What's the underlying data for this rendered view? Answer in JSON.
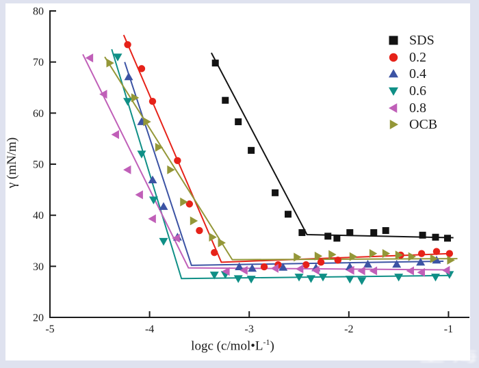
{
  "chart_data": {
    "type": "scatter",
    "title": "",
    "xlabel_main": "logc (c/mol•L",
    "xlabel_sup": "-1",
    "xlabel_close": ")",
    "ylabel": "γ (mN/m)",
    "axes": {
      "xlim": [
        -5,
        -0.79
      ],
      "ylim": [
        20,
        80
      ],
      "xticks": [
        -5,
        -4,
        -3,
        -2,
        -1
      ],
      "yticks": [
        20,
        30,
        40,
        50,
        60,
        70,
        80
      ],
      "grid": false,
      "legend_position": "upper-right"
    },
    "series": [
      {
        "name": "SDS",
        "marker": "square",
        "color": "#131313",
        "points": [
          [
            -3.34,
            69.8
          ],
          [
            -3.24,
            62.5
          ],
          [
            -3.11,
            58.3
          ],
          [
            -2.98,
            52.7
          ],
          [
            -2.74,
            44.4
          ],
          [
            -2.61,
            40.2
          ],
          [
            -2.47,
            36.6
          ],
          [
            -2.21,
            35.9
          ],
          [
            -2.12,
            35.5
          ],
          [
            -1.99,
            36.6
          ],
          [
            -1.75,
            36.6
          ],
          [
            -1.63,
            37.0
          ],
          [
            -1.26,
            36.1
          ],
          [
            -1.13,
            35.7
          ],
          [
            -1.01,
            35.5
          ]
        ],
        "line": [
          [
            -3.38,
            71.8
          ],
          [
            -2.42,
            36.2
          ],
          [
            -0.95,
            35.6
          ]
        ]
      },
      {
        "name": "0.2",
        "marker": "circle",
        "color": "#e62219",
        "points": [
          [
            -4.22,
            73.4
          ],
          [
            -4.08,
            68.7
          ],
          [
            -3.97,
            62.3
          ],
          [
            -3.72,
            50.7
          ],
          [
            -3.6,
            42.2
          ],
          [
            -3.5,
            37.0
          ],
          [
            -3.35,
            32.7
          ],
          [
            -2.85,
            29.9
          ],
          [
            -2.71,
            30.3
          ],
          [
            -2.43,
            30.3
          ],
          [
            -2.28,
            30.8
          ],
          [
            -2.11,
            31.2
          ],
          [
            -1.48,
            32.2
          ],
          [
            -1.27,
            32.5
          ],
          [
            -1.12,
            32.9
          ],
          [
            -0.99,
            32.5
          ]
        ],
        "line": [
          [
            -4.26,
            75.3
          ],
          [
            -3.28,
            30.8
          ],
          [
            -0.97,
            32.5
          ]
        ]
      },
      {
        "name": "0.4",
        "marker": "triangle-up",
        "color": "#3c53a4",
        "points": [
          [
            -4.21,
            67.1
          ],
          [
            -4.08,
            58.3
          ],
          [
            -3.97,
            46.9
          ],
          [
            -3.86,
            41.7
          ],
          [
            -3.72,
            35.7
          ],
          [
            -3.1,
            29.9
          ],
          [
            -2.97,
            29.6
          ],
          [
            -2.66,
            29.8
          ],
          [
            -2.33,
            29.7
          ],
          [
            -1.99,
            29.9
          ],
          [
            -1.81,
            30.4
          ],
          [
            -1.52,
            30.4
          ],
          [
            -1.28,
            30.8
          ],
          [
            -1.12,
            31.2
          ]
        ],
        "line": [
          [
            -4.25,
            70.0
          ],
          [
            -3.58,
            30.2
          ],
          [
            -1.05,
            31.0
          ]
        ]
      },
      {
        "name": "0.6",
        "marker": "triangle-down",
        "color": "#0f8f86",
        "points": [
          [
            -4.32,
            71.0
          ],
          [
            -4.22,
            62.3
          ],
          [
            -4.08,
            52.0
          ],
          [
            -3.96,
            43.0
          ],
          [
            -3.86,
            34.9
          ],
          [
            -3.35,
            28.3
          ],
          [
            -3.24,
            28.4
          ],
          [
            -3.11,
            27.6
          ],
          [
            -2.98,
            27.5
          ],
          [
            -2.5,
            27.9
          ],
          [
            -2.38,
            27.6
          ],
          [
            -2.26,
            27.9
          ],
          [
            -1.99,
            27.5
          ],
          [
            -1.87,
            27.2
          ],
          [
            -1.5,
            27.9
          ],
          [
            -1.13,
            27.9
          ],
          [
            -0.99,
            28.4
          ]
        ],
        "line": [
          [
            -4.38,
            72.5
          ],
          [
            -3.68,
            27.6
          ],
          [
            -0.97,
            28.2
          ]
        ]
      },
      {
        "name": "0.8",
        "marker": "triangle-left",
        "color": "#c05fb8",
        "points": [
          [
            -4.6,
            70.8
          ],
          [
            -4.46,
            63.7
          ],
          [
            -4.34,
            55.8
          ],
          [
            -4.22,
            48.9
          ],
          [
            -4.1,
            44.0
          ],
          [
            -3.97,
            39.3
          ],
          [
            -3.73,
            35.5
          ],
          [
            -3.23,
            29.0
          ],
          [
            -3.05,
            29.2
          ],
          [
            -2.74,
            29.6
          ],
          [
            -2.49,
            29.5
          ],
          [
            -2.33,
            29.2
          ],
          [
            -1.98,
            29.2
          ],
          [
            -1.87,
            29.1
          ],
          [
            -1.75,
            29.1
          ],
          [
            -1.38,
            29.1
          ],
          [
            -1.27,
            28.8
          ],
          [
            -1.02,
            29.2
          ]
        ],
        "line": [
          [
            -4.67,
            71.5
          ],
          [
            -3.61,
            29.7
          ],
          [
            -0.99,
            29.3
          ]
        ]
      },
      {
        "name": "OCB",
        "marker": "triangle-right",
        "color": "#949738",
        "points": [
          [
            -4.4,
            69.8
          ],
          [
            -4.15,
            63.0
          ],
          [
            -4.03,
            58.3
          ],
          [
            -3.91,
            53.3
          ],
          [
            -3.79,
            48.9
          ],
          [
            -3.66,
            42.6
          ],
          [
            -3.56,
            38.9
          ],
          [
            -3.37,
            35.7
          ],
          [
            -3.28,
            34.6
          ],
          [
            -2.52,
            31.8
          ],
          [
            -2.31,
            32.0
          ],
          [
            -2.17,
            32.3
          ],
          [
            -1.96,
            31.9
          ],
          [
            -1.76,
            32.5
          ],
          [
            -1.63,
            32.5
          ],
          [
            -1.5,
            32.2
          ],
          [
            -1.37,
            31.9
          ],
          [
            -1.15,
            31.5
          ],
          [
            -0.98,
            31.2
          ]
        ],
        "line": [
          [
            -4.45,
            71.0
          ],
          [
            -3.17,
            31.3
          ],
          [
            -0.91,
            31.5
          ]
        ]
      }
    ]
  },
  "watermark": {
    "text": "上海"
  }
}
